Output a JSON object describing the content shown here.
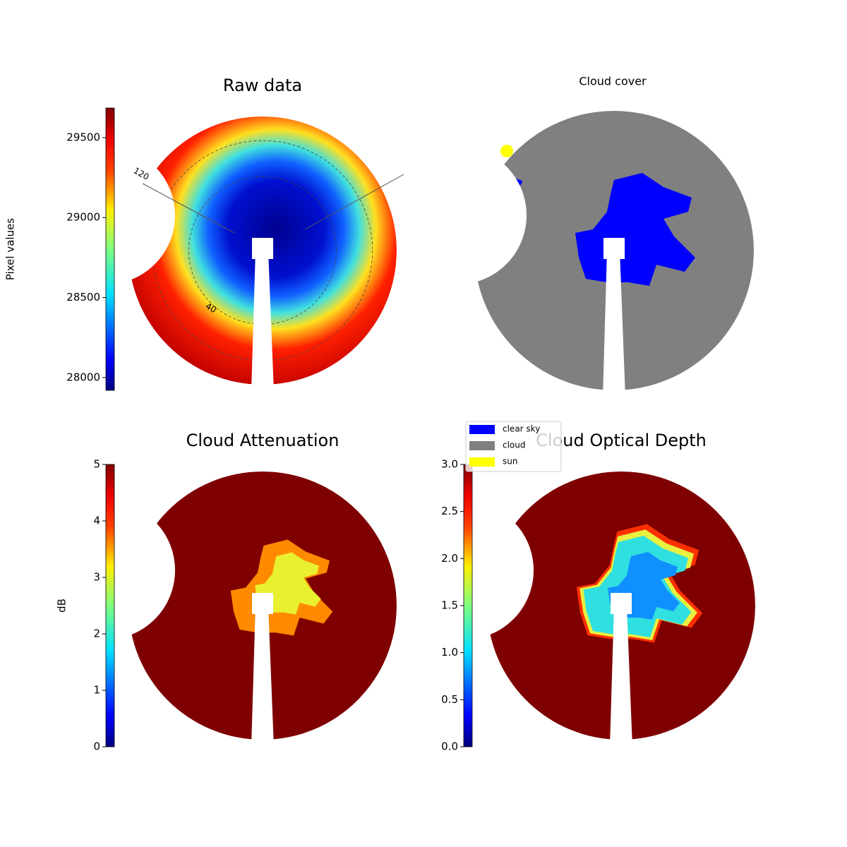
{
  "chart_data": [
    {
      "type": "image",
      "title": "Raw data",
      "colormap": "jet",
      "ylabel": "Pixel values",
      "ylim": [
        27920,
        29685
      ],
      "yticks": [
        28000,
        28500,
        29000,
        29500
      ],
      "annotations": [
        "120",
        "40"
      ]
    },
    {
      "type": "image",
      "title": "Cloud cover",
      "series": [
        {
          "name": "clear sky",
          "color": "#0000ff"
        },
        {
          "name": "cloud",
          "color": "#808080"
        },
        {
          "name": "sun",
          "color": "#ffff00"
        }
      ]
    },
    {
      "type": "image",
      "title": "Cloud Attenuation",
      "colormap": "jet",
      "ylabel": "dB",
      "ylim": [
        0,
        5
      ],
      "yticks": [
        0,
        1,
        2,
        3,
        4,
        5
      ]
    },
    {
      "type": "image",
      "title": "Cloud Optical Depth",
      "colormap": "jet",
      "ylim": [
        0,
        3
      ],
      "yticks": [
        {
          "value": 0,
          "label": "0.0"
        },
        {
          "value": 0.5,
          "label": "0.5"
        },
        {
          "value": 1,
          "label": "1.0"
        },
        {
          "value": 1.5,
          "label": "1.5"
        },
        {
          "value": 2,
          "label": "2.0"
        },
        {
          "value": 2.5,
          "label": "2.5"
        },
        {
          "value": 3,
          "label": "3.0"
        }
      ]
    }
  ]
}
